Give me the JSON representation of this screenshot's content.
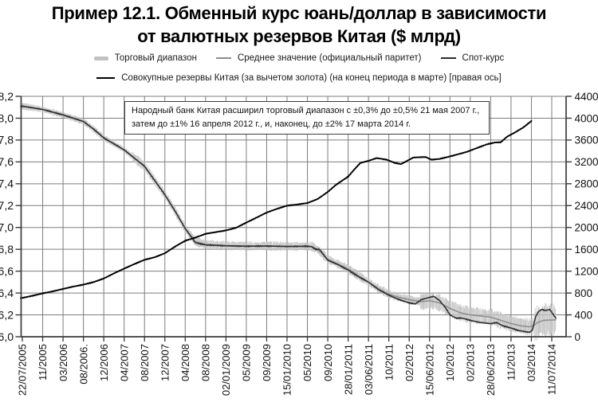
{
  "title": {
    "line1": "Пример 12.1. Обменный курс юань/доллар в зависимости",
    "line2": "от валютных резервов Китая ($ млрд)"
  },
  "legend": {
    "row1": [
      {
        "label": "Торговый диапазон"
      },
      {
        "label": "Среднее значение (официальный паритет)"
      },
      {
        "label": "Спот-курс"
      }
    ],
    "row2": [
      {
        "label": "Совокупные резервы Китая (за вычетом золота) (на конец периода в марте) [правая ось]"
      }
    ]
  },
  "annotation": "Народный банк Китая расширил торговый диапазон с ±0,3% до ±0,5% 21 мая 2007 г., затем до ±1% 16 апреля 2012 г., и, наконец, до ±2% 17 марта 2014 г.",
  "chart_data": {
    "type": "line",
    "x_axis_note": "даты, равномерная шкала; индексы точек соответствуют номерам меток оси X",
    "x_tick_labels": [
      "22/07/2005",
      "11/2005",
      "03/2006",
      "08/2006.",
      "12/2006",
      "04/2007",
      "08/2007",
      "12/2007",
      "04/2008",
      "08/2008",
      "02/01/2009",
      "05/2009",
      "09/2009",
      "15/01/2010",
      "05/2010",
      "09/2010",
      "28/01/2011",
      "03/06/2011",
      "10/2011",
      "02/2012",
      "15/06/2012",
      "10/2012",
      "02/2013",
      "28/06/2013",
      "11/2013",
      "03/2014",
      "11/07/2014"
    ],
    "y_left": {
      "label": "юань/доллар",
      "min": 6.0,
      "max": 8.2,
      "tick_labels": [
        "8,2",
        "8,0",
        "7,8",
        "7,6",
        "7,4",
        "7,2",
        "7,0",
        "6,8",
        "6,6",
        "6,4",
        "6,2",
        "6,0"
      ],
      "tick_values": [
        8.2,
        8.0,
        7.8,
        7.6,
        7.4,
        7.2,
        7.0,
        6.8,
        6.6,
        6.4,
        6.2,
        6.0
      ]
    },
    "y_right": {
      "label": "$ млрд",
      "min": 0,
      "max": 4400,
      "tick_labels": [
        "4400",
        "4000",
        "3600",
        "3200",
        "2800",
        "2400",
        "2000",
        "1600",
        "1200",
        "800",
        "400",
        "0"
      ],
      "tick_values": [
        4400,
        4000,
        3600,
        3200,
        2800,
        2400,
        2000,
        1600,
        1200,
        800,
        400,
        0
      ]
    },
    "grid": true,
    "legend_position": "top",
    "colors": {
      "grid": "#7d7d7d",
      "axis": "#3a3a3a",
      "band": "#c3c3c3",
      "parity": "#8d8d8d",
      "spot": "#2d2d2d",
      "reserves": "#000000",
      "text": "#111111"
    },
    "band_steps": [
      {
        "to": 5.42,
        "pct": 0.3
      },
      {
        "to": 19.56,
        "pct": 0.5
      },
      {
        "to": 25.12,
        "pct": 1.0
      },
      {
        "to": 26.2,
        "pct": 2.0
      }
    ],
    "series": [
      {
        "key": "band",
        "name": "Торговый диапазон",
        "axis": "left",
        "type": "band",
        "note": "±% вокруг официального паритета согласно band_steps"
      },
      {
        "key": "parity",
        "name": "Среднее значение (официальный паритет)",
        "axis": "left",
        "type": "line",
        "points": [
          [
            -0.08,
            8.11
          ],
          [
            0,
            8.11
          ],
          [
            1,
            8.08
          ],
          [
            2,
            8.03
          ],
          [
            3,
            7.97
          ],
          [
            3.5,
            7.9
          ],
          [
            4,
            7.82
          ],
          [
            5,
            7.71
          ],
          [
            6,
            7.56
          ],
          [
            7,
            7.3
          ],
          [
            7.5,
            7.15
          ],
          [
            8,
            6.99
          ],
          [
            8.5,
            6.87
          ],
          [
            9,
            6.845
          ],
          [
            10,
            6.835
          ],
          [
            11,
            6.83
          ],
          [
            12,
            6.83
          ],
          [
            13,
            6.828
          ],
          [
            14,
            6.827
          ],
          [
            14.2,
            6.828
          ],
          [
            14.5,
            6.8
          ],
          [
            15,
            6.71
          ],
          [
            16,
            6.62
          ],
          [
            17,
            6.5
          ],
          [
            17.5,
            6.44
          ],
          [
            18,
            6.39
          ],
          [
            18.5,
            6.36
          ],
          [
            19,
            6.34
          ],
          [
            19.6,
            6.32
          ],
          [
            20,
            6.33
          ],
          [
            20.5,
            6.31
          ],
          [
            21,
            6.26
          ],
          [
            21.5,
            6.22
          ],
          [
            22,
            6.2
          ],
          [
            22.5,
            6.19
          ],
          [
            23,
            6.18
          ],
          [
            23.5,
            6.15
          ],
          [
            24,
            6.12
          ],
          [
            24.5,
            6.1
          ],
          [
            24.9,
            6.09
          ],
          [
            25.1,
            6.1
          ],
          [
            25.3,
            6.13
          ],
          [
            25.6,
            6.15
          ],
          [
            26.2,
            6.155
          ]
        ]
      },
      {
        "key": "spot",
        "name": "Спот-курс",
        "axis": "left",
        "type": "line",
        "points": [
          [
            -0.08,
            8.11
          ],
          [
            0,
            8.11
          ],
          [
            1,
            8.08
          ],
          [
            2,
            8.03
          ],
          [
            3,
            7.97
          ],
          [
            3.5,
            7.9
          ],
          [
            4,
            7.82
          ],
          [
            5,
            7.71
          ],
          [
            6,
            7.56
          ],
          [
            7,
            7.3
          ],
          [
            7.5,
            7.15
          ],
          [
            8,
            6.99
          ],
          [
            8.5,
            6.86
          ],
          [
            9,
            6.84
          ],
          [
            10,
            6.832
          ],
          [
            11,
            6.828
          ],
          [
            12,
            6.83
          ],
          [
            13,
            6.826
          ],
          [
            14,
            6.828
          ],
          [
            14.2,
            6.824
          ],
          [
            14.4,
            6.8
          ],
          [
            14.6,
            6.8
          ],
          [
            15,
            6.7
          ],
          [
            15.5,
            6.66
          ],
          [
            16,
            6.61
          ],
          [
            16.5,
            6.55
          ],
          [
            17,
            6.5
          ],
          [
            17.5,
            6.43
          ],
          [
            18,
            6.38
          ],
          [
            18.5,
            6.34
          ],
          [
            19,
            6.31
          ],
          [
            19.3,
            6.3
          ],
          [
            19.6,
            6.34
          ],
          [
            20,
            6.36
          ],
          [
            20.2,
            6.37
          ],
          [
            20.5,
            6.33
          ],
          [
            20.8,
            6.26
          ],
          [
            21,
            6.2
          ],
          [
            21.3,
            6.17
          ],
          [
            21.6,
            6.17
          ],
          [
            22,
            6.15
          ],
          [
            22.5,
            6.13
          ],
          [
            23,
            6.12
          ],
          [
            23.3,
            6.13
          ],
          [
            23.6,
            6.1
          ],
          [
            24,
            6.08
          ],
          [
            24.3,
            6.06
          ],
          [
            24.6,
            6.05
          ],
          [
            24.9,
            6.04
          ],
          [
            25.05,
            6.06
          ],
          [
            25.2,
            6.18
          ],
          [
            25.35,
            6.23
          ],
          [
            25.5,
            6.25
          ],
          [
            25.7,
            6.24
          ],
          [
            25.9,
            6.25
          ],
          [
            26.05,
            6.21
          ],
          [
            26.2,
            6.17
          ]
        ]
      },
      {
        "key": "reserves",
        "name": "Совокупные резервы Китая (за вычетом золота)",
        "axis": "right",
        "type": "line",
        "points": [
          [
            -0.08,
            705
          ],
          [
            0,
            711
          ],
          [
            0.5,
            750
          ],
          [
            1,
            794
          ],
          [
            1.5,
            831
          ],
          [
            2,
            875
          ],
          [
            2.5,
            918
          ],
          [
            3,
            954
          ],
          [
            3.5,
            1000
          ],
          [
            4,
            1066
          ],
          [
            4.5,
            1160
          ],
          [
            5,
            1247
          ],
          [
            5.5,
            1330
          ],
          [
            6,
            1408
          ],
          [
            6.5,
            1455
          ],
          [
            7,
            1528
          ],
          [
            7.5,
            1650
          ],
          [
            8,
            1757
          ],
          [
            8.5,
            1815
          ],
          [
            9,
            1884
          ],
          [
            9.5,
            1915
          ],
          [
            10,
            1946
          ],
          [
            10.5,
            1995
          ],
          [
            11,
            2089
          ],
          [
            11.5,
            2180
          ],
          [
            12,
            2273
          ],
          [
            12.5,
            2340
          ],
          [
            13,
            2399
          ],
          [
            13.5,
            2420
          ],
          [
            14,
            2447
          ],
          [
            14.5,
            2520
          ],
          [
            15,
            2650
          ],
          [
            15.4,
            2780
          ],
          [
            16,
            2930
          ],
          [
            16.3,
            3060
          ],
          [
            16.6,
            3180
          ],
          [
            17,
            3220
          ],
          [
            17.4,
            3270
          ],
          [
            17.9,
            3240
          ],
          [
            18.3,
            3180
          ],
          [
            18.6,
            3160
          ],
          [
            19.2,
            3280
          ],
          [
            19.8,
            3290
          ],
          [
            20.1,
            3240
          ],
          [
            20.5,
            3255
          ],
          [
            21,
            3300
          ],
          [
            21.8,
            3380
          ],
          [
            22.3,
            3450
          ],
          [
            22.8,
            3520
          ],
          [
            23.2,
            3555
          ],
          [
            23.5,
            3560
          ],
          [
            23.8,
            3660
          ],
          [
            24.2,
            3740
          ],
          [
            24.6,
            3830
          ],
          [
            25,
            3948
          ]
        ]
      }
    ]
  }
}
